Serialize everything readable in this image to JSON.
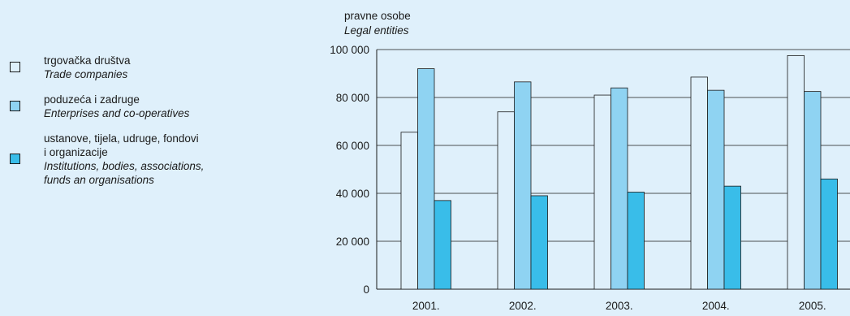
{
  "legend": [
    {
      "hr": "trgovačka društva",
      "en": "Trade companies",
      "color": "#dff0fb"
    },
    {
      "hr": "poduzeća i zadruge",
      "en": "Enterprises and co-operatives",
      "color": "#8fd3f2"
    },
    {
      "hr1": "ustanove, tijela, udruge, fondovi",
      "hr2": "i organizacije",
      "en1": "Institutions, bodies, associations,",
      "en2": "funds an organisations",
      "color": "#39bde9"
    }
  ],
  "unit": {
    "hr": "pravne osobe",
    "en": "Legal entities"
  },
  "chart_data": {
    "type": "bar",
    "categories": [
      "2001.",
      "2002.",
      "2003.",
      "2004.",
      "2005."
    ],
    "series": [
      {
        "name": "trgovačka društva / Trade companies",
        "values": [
          65500,
          74000,
          81000,
          88500,
          97500
        ],
        "color": "#dff0fb"
      },
      {
        "name": "poduzeća i zadruge / Enterprises and co-operatives",
        "values": [
          92000,
          86500,
          84000,
          83000,
          82500
        ],
        "color": "#8fd3f2"
      },
      {
        "name": "ustanove, tijela, udruge, fondovi i organizacije / Institutions, bodies, associations, funds an organisations",
        "values": [
          37000,
          39000,
          40500,
          43000,
          46000
        ],
        "color": "#39bde9"
      }
    ],
    "yticks": [
      "0",
      "20 000",
      "40 000",
      "60 000",
      "80 000",
      "100 000"
    ],
    "ylim": [
      0,
      100000
    ],
    "grid": true,
    "legend_position": "left"
  }
}
